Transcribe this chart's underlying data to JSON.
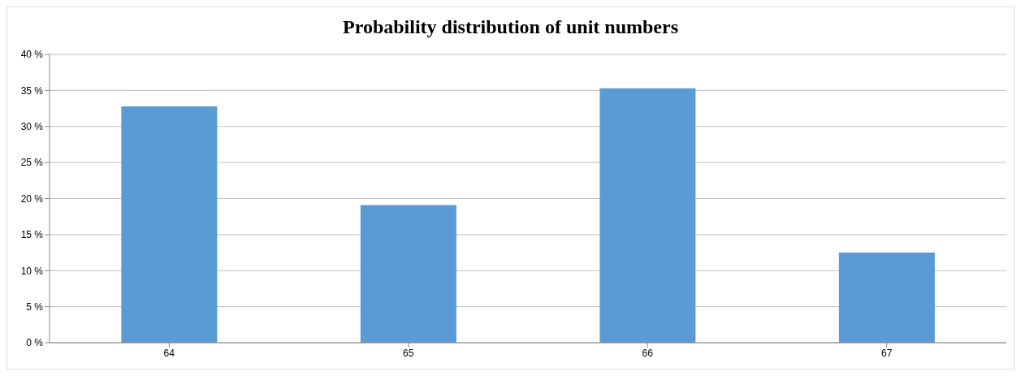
{
  "chart_data": {
    "type": "bar",
    "title": "Probability distribution of unit numbers",
    "categories": [
      "64",
      "65",
      "66",
      "67"
    ],
    "values": [
      32.8,
      19.1,
      35.3,
      12.5
    ],
    "color": "#5b9bd5",
    "ylim": [
      0,
      40
    ],
    "yticks": [
      {
        "value": 0,
        "label": "0 %"
      },
      {
        "value": 5,
        "label": "5 %"
      },
      {
        "value": 10,
        "label": "10 %"
      },
      {
        "value": 15,
        "label": "15 %"
      },
      {
        "value": 20,
        "label": "20 %"
      },
      {
        "value": 25,
        "label": "25 %"
      },
      {
        "value": 30,
        "label": "30 %"
      },
      {
        "value": 35,
        "label": "35 %"
      },
      {
        "value": 40,
        "label": "40 %"
      }
    ],
    "grid": "y"
  }
}
